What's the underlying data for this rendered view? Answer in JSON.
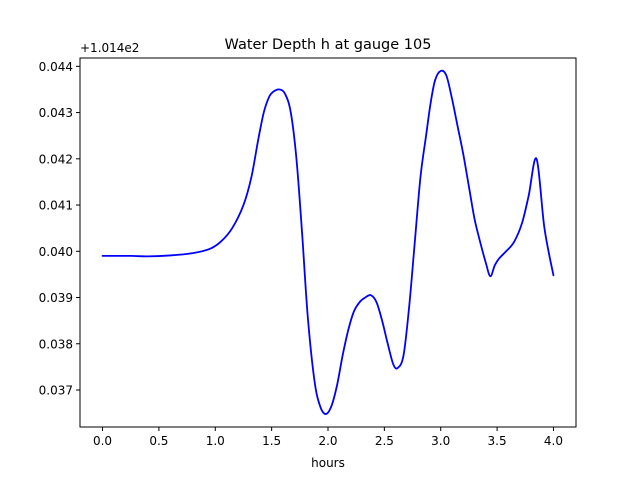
{
  "chart_data": {
    "type": "line",
    "title": "Water Depth h at gauge 105",
    "xlabel": "hours",
    "ylabel": "",
    "offset_label": "+1.014e2",
    "xlim": [
      -0.2,
      4.2
    ],
    "ylim": [
      0.0362,
      0.04418
    ],
    "xticks": [
      0.0,
      0.5,
      1.0,
      1.5,
      2.0,
      2.5,
      3.0,
      3.5,
      4.0
    ],
    "xtick_labels": [
      "0.0",
      "0.5",
      "1.0",
      "1.5",
      "2.0",
      "2.5",
      "3.0",
      "3.5",
      "4.0"
    ],
    "yticks": [
      0.037,
      0.038,
      0.039,
      0.04,
      0.041,
      0.042,
      0.043,
      0.044
    ],
    "ytick_labels": [
      "0.037",
      "0.038",
      "0.039",
      "0.040",
      "0.041",
      "0.042",
      "0.043",
      "0.044"
    ],
    "grid": false,
    "series": [
      {
        "color": "#0000ff",
        "x": [
          0.0,
          0.25,
          0.4,
          0.6,
          0.8,
          0.95,
          1.05,
          1.15,
          1.25,
          1.32,
          1.38,
          1.43,
          1.48,
          1.52,
          1.57,
          1.62,
          1.67,
          1.72,
          1.77,
          1.82,
          1.88,
          1.93,
          1.98,
          2.03,
          2.08,
          2.13,
          2.18,
          2.23,
          2.28,
          2.33,
          2.38,
          2.43,
          2.48,
          2.53,
          2.58,
          2.62,
          2.67,
          2.72,
          2.77,
          2.82,
          2.87,
          2.91,
          2.95,
          3.0,
          3.05,
          3.1,
          3.15,
          3.2,
          3.25,
          3.3,
          3.35,
          3.4,
          3.44,
          3.48,
          3.52,
          3.58,
          3.65,
          3.72,
          3.78,
          3.85,
          3.92,
          4.0
        ],
        "y": [
          0.0399,
          0.0399,
          0.03989,
          0.03991,
          0.03996,
          0.04005,
          0.04021,
          0.0405,
          0.041,
          0.0416,
          0.0424,
          0.043,
          0.04335,
          0.04346,
          0.0435,
          0.0434,
          0.043,
          0.042,
          0.0404,
          0.0386,
          0.0372,
          0.03665,
          0.03648,
          0.03665,
          0.0371,
          0.03775,
          0.0383,
          0.0387,
          0.0389,
          0.039,
          0.03905,
          0.0389,
          0.0385,
          0.038,
          0.03755,
          0.03748,
          0.03775,
          0.0388,
          0.0402,
          0.0416,
          0.0425,
          0.0432,
          0.0437,
          0.0439,
          0.0438,
          0.0433,
          0.0427,
          0.0421,
          0.0414,
          0.0407,
          0.0402,
          0.03975,
          0.03946,
          0.0397,
          0.03985,
          0.04,
          0.0402,
          0.0406,
          0.0412,
          0.042,
          0.0405,
          0.03948
        ]
      }
    ]
  }
}
